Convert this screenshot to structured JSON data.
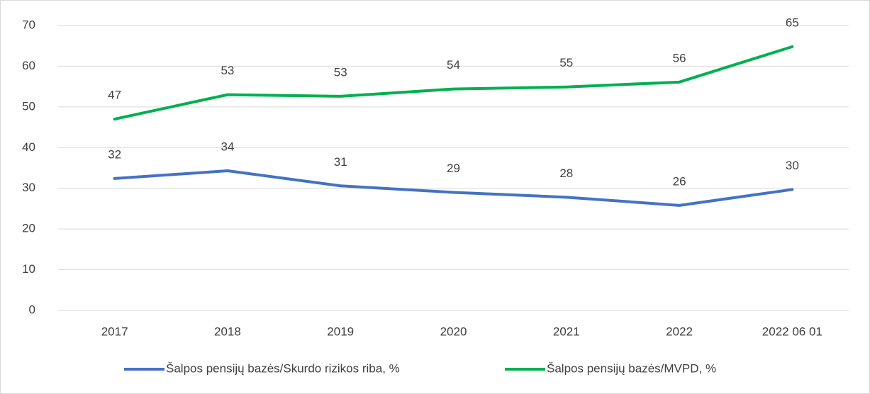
{
  "chart_data": {
    "type": "line",
    "categories": [
      "2017",
      "2018",
      "2019",
      "2020",
      "2021",
      "2022",
      "2022 06 01"
    ],
    "series": [
      {
        "name": "Šalpos pensijų bazės/Skurdo rizikos riba, %",
        "color": "#4472c4",
        "values": [
          32.4,
          34.3,
          30.6,
          29.0,
          27.8,
          25.8,
          29.7
        ],
        "value_labels": [
          "32",
          "34",
          "31",
          "29",
          "28",
          "26",
          "30"
        ]
      },
      {
        "name": "Šalpos pensijų bazės/MVPD, %",
        "color": "#00b050",
        "values": [
          47.0,
          53.0,
          52.6,
          54.4,
          54.9,
          56.1,
          64.8
        ],
        "value_labels": [
          "47",
          "53",
          "53",
          "54",
          "55",
          "56",
          "65"
        ]
      }
    ],
    "ylim": [
      0,
      70
    ],
    "yticks": [
      0,
      10,
      20,
      30,
      40,
      50,
      60,
      70
    ],
    "grid": true,
    "legend": "bottom"
  }
}
